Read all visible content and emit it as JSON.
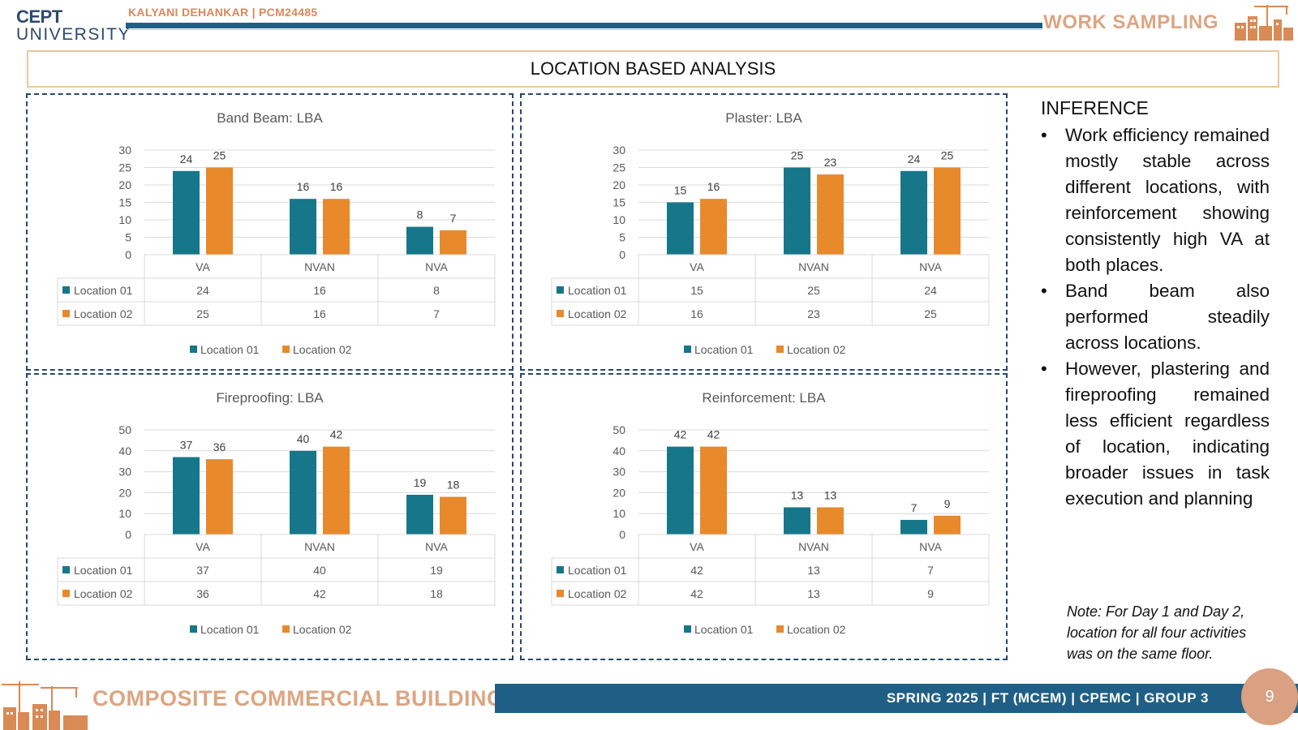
{
  "header": {
    "logo_line1": "CEPT",
    "logo_line2": "UNIVERSITY",
    "author": "KALYANI DEHANKAR | PCM24485",
    "title": "WORK SAMPLING"
  },
  "section_title": "LOCATION BASED ANALYSIS",
  "chart_data": [
    {
      "type": "bar",
      "title": "Band Beam: LBA",
      "categories": [
        "VA",
        "NVAN",
        "NVA"
      ],
      "series": [
        {
          "name": "Location 01",
          "values": [
            24,
            16,
            8
          ]
        },
        {
          "name": "Location 02",
          "values": [
            25,
            16,
            7
          ]
        }
      ],
      "ylim": [
        0,
        30
      ],
      "yticks": [
        0,
        5,
        10,
        15,
        20,
        25,
        30
      ],
      "data_table": true,
      "legend": "bottom",
      "grid": true
    },
    {
      "type": "bar",
      "title": "Plaster: LBA",
      "categories": [
        "VA",
        "NVAN",
        "NVA"
      ],
      "series": [
        {
          "name": "Location 01",
          "values": [
            15,
            25,
            24
          ]
        },
        {
          "name": "Location 02",
          "values": [
            16,
            23,
            25
          ]
        }
      ],
      "ylim": [
        0,
        30
      ],
      "yticks": [
        0,
        5,
        10,
        15,
        20,
        25,
        30
      ],
      "data_table": true,
      "legend": "bottom",
      "grid": true
    },
    {
      "type": "bar",
      "title": "Fireproofing: LBA",
      "categories": [
        "VA",
        "NVAN",
        "NVA"
      ],
      "series": [
        {
          "name": "Location 01",
          "values": [
            37,
            40,
            19
          ]
        },
        {
          "name": "Location 02",
          "values": [
            36,
            42,
            18
          ]
        }
      ],
      "ylim": [
        0,
        50
      ],
      "yticks": [
        0,
        10,
        20,
        30,
        40,
        50
      ],
      "data_table": true,
      "legend": "bottom",
      "grid": true
    },
    {
      "type": "bar",
      "title": "Reinforcement: LBA",
      "categories": [
        "VA",
        "NVAN",
        "NVA"
      ],
      "series": [
        {
          "name": "Location 01",
          "values": [
            42,
            13,
            7
          ]
        },
        {
          "name": "Location 02",
          "values": [
            42,
            13,
            9
          ]
        }
      ],
      "ylim": [
        0,
        50
      ],
      "yticks": [
        0,
        10,
        20,
        30,
        40,
        50
      ],
      "data_table": true,
      "legend": "bottom",
      "grid": true
    }
  ],
  "colors": {
    "location_01": "#17778a",
    "location_02": "#e8892c",
    "header_bar": "#1f5f85",
    "accent_peach": "#dca582",
    "panel_border": "#27486e"
  },
  "inference": {
    "title": "INFERENCE",
    "bullets": [
      "Work efficiency remained mostly stable across different locations, with reinforcement showing consistently high VA at both places.",
      "Band beam also performed steadily across locations.",
      "However, plastering and fireproofing remained less efficient regardless of location, indicating broader issues in task execution and planning"
    ]
  },
  "note": "Note: For Day 1 and Day 2, location for all four activities was on the same floor.",
  "footer": {
    "project_title": "COMPOSITE COMMERCIAL BUILDING",
    "info": "SPRING 2025 | FT (MCEM) | CPEMC | GROUP 3",
    "page_number": "9"
  },
  "icons": [
    "crane-skyline-icon"
  ]
}
